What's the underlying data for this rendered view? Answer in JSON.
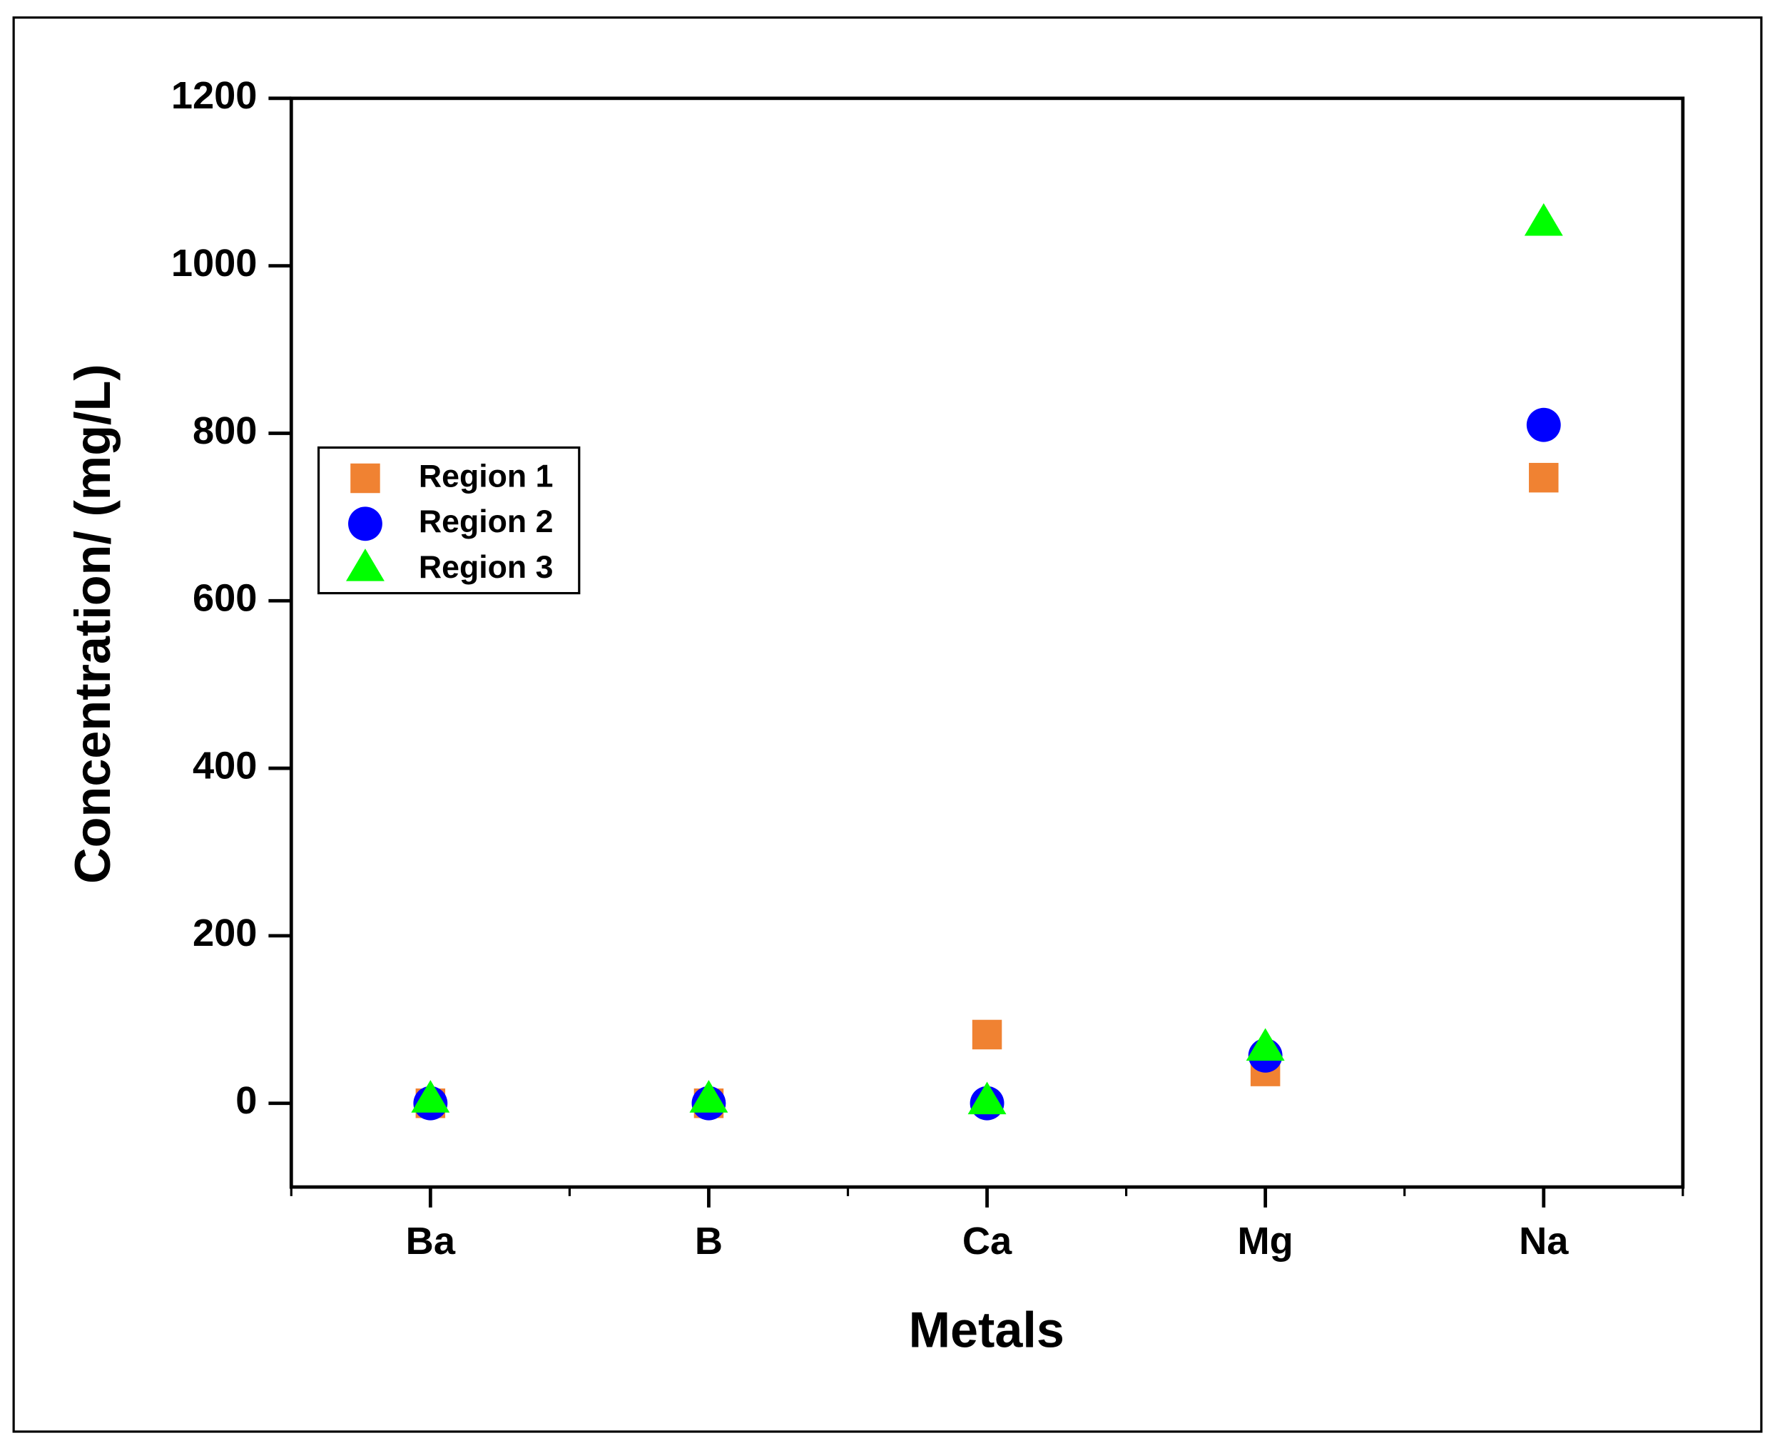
{
  "chart_data": {
    "type": "scatter",
    "x_label": "Metals",
    "y_label": "Concentration/ (mg/L)",
    "categories": [
      "Ba",
      "B",
      "Ca",
      "Mg",
      "Na"
    ],
    "series": [
      {
        "name": "Region 1",
        "color": "#f08232",
        "marker": "square",
        "values": [
          0,
          0,
          82,
          38,
          747
        ]
      },
      {
        "name": "Region 2",
        "color": "#0000ff",
        "marker": "circle",
        "values": [
          0,
          0,
          0,
          57,
          810
        ]
      },
      {
        "name": "Region 3",
        "color": "#00ff00",
        "marker": "triangle",
        "values": [
          3,
          3,
          1,
          65,
          1050
        ]
      }
    ],
    "ylim": [
      -100,
      1200
    ],
    "yticks": [
      0,
      200,
      400,
      600,
      800,
      1000,
      1200
    ],
    "grid": false,
    "legend": "left"
  }
}
